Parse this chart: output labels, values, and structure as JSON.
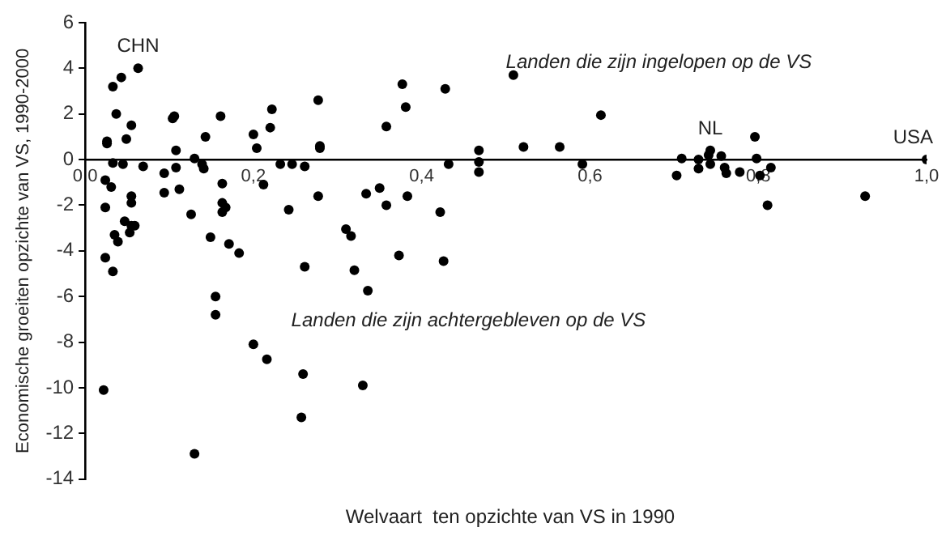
{
  "chart_data": {
    "type": "scatter",
    "xlabel": "Welvaart  ten opzichte van VS in 1990",
    "ylabel": "Economische groeiten opzichte van VS, 1990-2000",
    "xlim": [
      0,
      1
    ],
    "xticks": [
      {
        "value": 0,
        "label": "0,0"
      },
      {
        "value": 0.2,
        "label": "0,2"
      },
      {
        "value": 0.4,
        "label": "0,4"
      },
      {
        "value": 0.6,
        "label": "0,6"
      },
      {
        "value": 0.8,
        "label": "0,8"
      },
      {
        "value": 1,
        "label": "1,0"
      }
    ],
    "ylim": [
      -14,
      6
    ],
    "yticks": [
      -14,
      -12,
      -10,
      -8,
      -6,
      -4,
      -2,
      0,
      2,
      4,
      6
    ],
    "grid": false,
    "legend": false,
    "marker": "circle",
    "series": [
      {
        "color": "#000000",
        "x": [
          0.063,
          0.043,
          0.033,
          0.037,
          0.055,
          0.026,
          0.026,
          0.049,
          0.106,
          0.104,
          0.161,
          0.143,
          0.2,
          0.204,
          0.222,
          0.22,
          0.108,
          0.033,
          0.045,
          0.069,
          0.13,
          0.139,
          0.141,
          0.108,
          0.094,
          0.094,
          0.112,
          0.024,
          0.031,
          0.055,
          0.055,
          0.024,
          0.163,
          0.212,
          0.232,
          0.163,
          0.167,
          0.163,
          0.126,
          0.242,
          0.047,
          0.055,
          0.059,
          0.035,
          0.149,
          0.171,
          0.039,
          0.053,
          0.024,
          0.033,
          0.183,
          0.155,
          0.155,
          0.2,
          0.216,
          0.022,
          0.13,
          0.277,
          0.377,
          0.428,
          0.381,
          0.358,
          0.509,
          0.279,
          0.279,
          0.468,
          0.521,
          0.246,
          0.261,
          0.432,
          0.468,
          0.468,
          0.334,
          0.35,
          0.358,
          0.383,
          0.277,
          0.422,
          0.31,
          0.316,
          0.373,
          0.426,
          0.261,
          0.32,
          0.336,
          0.259,
          0.33,
          0.257,
          0.613,
          0.564,
          0.591,
          0.709,
          0.703,
          0.729,
          0.729,
          0.743,
          0.741,
          0.743,
          0.756,
          0.76,
          0.762,
          0.778,
          0.796,
          0.798,
          0.802,
          0.815,
          0.811,
          0.927,
          1.0
        ],
        "values": [
          4.0,
          3.6,
          3.2,
          2.0,
          1.5,
          0.8,
          0.7,
          0.9,
          1.9,
          1.8,
          1.9,
          1.0,
          1.1,
          0.5,
          2.2,
          1.4,
          0.4,
          -0.15,
          -0.2,
          -0.3,
          0.05,
          -0.2,
          -0.4,
          -0.35,
          -0.6,
          -1.45,
          -1.3,
          -0.9,
          -1.2,
          -1.6,
          -1.9,
          -2.1,
          -1.05,
          -1.1,
          -0.2,
          -1.9,
          -2.1,
          -2.3,
          -2.4,
          -2.2,
          -2.7,
          -2.9,
          -2.9,
          -3.3,
          -3.4,
          -3.7,
          -3.6,
          -3.2,
          -4.3,
          -4.9,
          -4.1,
          -6.0,
          -6.8,
          -8.1,
          -8.75,
          -10.1,
          -12.9,
          2.6,
          3.3,
          3.1,
          2.3,
          1.45,
          3.7,
          0.6,
          0.5,
          0.4,
          0.55,
          -0.2,
          -0.3,
          -0.2,
          -0.1,
          -0.55,
          -1.5,
          -1.25,
          -2.0,
          -1.6,
          -1.6,
          -2.3,
          -3.05,
          -3.35,
          -4.2,
          -4.45,
          -4.7,
          -4.85,
          -5.75,
          -9.4,
          -9.9,
          -11.3,
          1.95,
          0.55,
          -0.2,
          0.05,
          -0.7,
          0.0,
          -0.4,
          0.4,
          0.2,
          -0.2,
          0.15,
          -0.35,
          -0.6,
          -0.55,
          1.0,
          0.05,
          -0.7,
          -0.35,
          -2.0,
          -1.6,
          0.0
        ]
      }
    ],
    "annotations": [
      {
        "text": "CHN",
        "x": 0.063,
        "y": 4.0
      },
      {
        "text": "NL",
        "x": 0.743,
        "y": 0.4
      },
      {
        "text": "USA",
        "x": 1.0,
        "y": 0.0
      },
      "Landen die zijn ingelopen op de VS",
      "Landen die zijn achtergebleven op de VS"
    ]
  }
}
